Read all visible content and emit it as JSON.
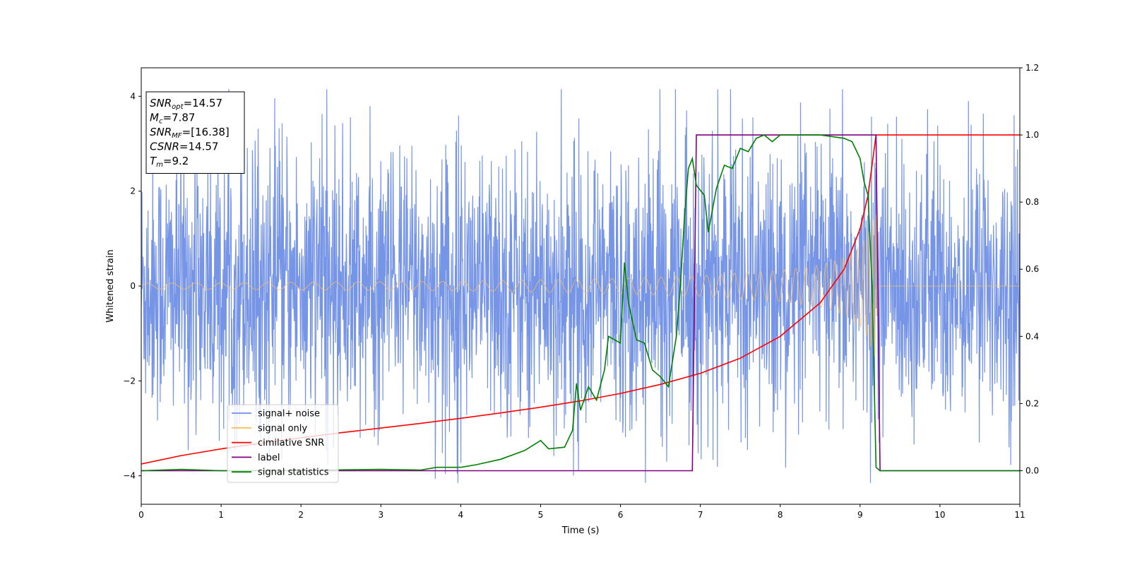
{
  "chart_data": {
    "type": "line",
    "xlabel": "Time (s)",
    "ylabel": "Whitened strain",
    "xlim": [
      0,
      11
    ],
    "ylim": [
      -4.6,
      4.6
    ],
    "y2lim": [
      -0.1,
      1.2
    ],
    "xticks": [
      0,
      1,
      2,
      3,
      4,
      5,
      6,
      7,
      8,
      9,
      10,
      11
    ],
    "yticks": [
      -4,
      -2,
      0,
      2,
      4
    ],
    "yticklabels": [
      "−4",
      "−2",
      "0",
      "2",
      "4"
    ],
    "y2ticks": [
      0.0,
      0.2,
      0.4,
      0.6,
      0.8,
      1.0,
      1.2
    ],
    "y2ticklabels": [
      "0.0",
      "0.2",
      "0.4",
      "0.6",
      "0.8",
      "1.0",
      "1.2"
    ],
    "grid": false,
    "legend_position": "lower-left",
    "annotation": {
      "lines": [
        {
          "base": "SNR",
          "sub": "opt",
          "value": "=14.57"
        },
        {
          "base": "M",
          "sub": "c",
          "value": "=7.87"
        },
        {
          "base": "SNR",
          "sub": "MF",
          "value": "=[16.38]"
        },
        {
          "base": "CSNR",
          "sub": "",
          "value": "=14.57"
        },
        {
          "base": "T",
          "sub": "m",
          "value": "=9.2"
        }
      ]
    },
    "series": [
      {
        "name": "signal+ noise",
        "axis": "left",
        "color": "#6f8fe6",
        "style": "noise",
        "amplitude_envelope": [
          [
            0,
            1.5
          ],
          [
            11,
            1.5
          ]
        ],
        "spike_max": 4.15,
        "spike_min": -4.15
      },
      {
        "name": "signal only",
        "axis": "left",
        "color": "#ffbf5f",
        "style": "chirp",
        "amplitude": [
          [
            0,
            0.06
          ],
          [
            2,
            0.08
          ],
          [
            4,
            0.1
          ],
          [
            6,
            0.16
          ],
          [
            7,
            0.22
          ],
          [
            8,
            0.33
          ],
          [
            8.5,
            0.45
          ],
          [
            8.8,
            0.6
          ],
          [
            9.0,
            0.85
          ],
          [
            9.1,
            1.1
          ],
          [
            9.2,
            1.6
          ],
          [
            9.22,
            0
          ]
        ],
        "end_time": 9.22
      },
      {
        "name": "cimilative SNR",
        "axis": "right",
        "color": "#ff0000",
        "points": [
          [
            0,
            0.02
          ],
          [
            0.5,
            0.045
          ],
          [
            1,
            0.065
          ],
          [
            1.5,
            0.082
          ],
          [
            2,
            0.098
          ],
          [
            2.5,
            0.113
          ],
          [
            3,
            0.127
          ],
          [
            3.5,
            0.141
          ],
          [
            4,
            0.156
          ],
          [
            4.5,
            0.172
          ],
          [
            5,
            0.189
          ],
          [
            5.5,
            0.208
          ],
          [
            6,
            0.23
          ],
          [
            6.5,
            0.257
          ],
          [
            7,
            0.29
          ],
          [
            7.5,
            0.335
          ],
          [
            8,
            0.4
          ],
          [
            8.5,
            0.5
          ],
          [
            8.8,
            0.6
          ],
          [
            9.0,
            0.72
          ],
          [
            9.1,
            0.82
          ],
          [
            9.2,
            1.0
          ],
          [
            11,
            1.0
          ]
        ]
      },
      {
        "name": "label",
        "axis": "right",
        "color": "#800080",
        "points": [
          [
            0,
            0.0
          ],
          [
            6.9,
            0.0
          ],
          [
            6.95,
            1.0
          ],
          [
            9.2,
            1.0
          ],
          [
            9.25,
            0.0
          ],
          [
            11,
            0.0
          ]
        ]
      },
      {
        "name": "signal statistics",
        "axis": "right",
        "color": "#008000",
        "points": [
          [
            0,
            0.0
          ],
          [
            0.5,
            0.004
          ],
          [
            1,
            0.0
          ],
          [
            2,
            0.001
          ],
          [
            3,
            0.004
          ],
          [
            3.5,
            0.002
          ],
          [
            3.7,
            0.01
          ],
          [
            4,
            0.01
          ],
          [
            4.2,
            0.018
          ],
          [
            4.5,
            0.034
          ],
          [
            4.8,
            0.06
          ],
          [
            5.0,
            0.09
          ],
          [
            5.1,
            0.065
          ],
          [
            5.3,
            0.07
          ],
          [
            5.4,
            0.12
          ],
          [
            5.45,
            0.26
          ],
          [
            5.5,
            0.18
          ],
          [
            5.6,
            0.25
          ],
          [
            5.7,
            0.21
          ],
          [
            5.8,
            0.3
          ],
          [
            5.85,
            0.4
          ],
          [
            6.0,
            0.38
          ],
          [
            6.05,
            0.62
          ],
          [
            6.1,
            0.5
          ],
          [
            6.2,
            0.39
          ],
          [
            6.3,
            0.38
          ],
          [
            6.4,
            0.3
          ],
          [
            6.5,
            0.28
          ],
          [
            6.6,
            0.25
          ],
          [
            6.7,
            0.4
          ],
          [
            6.75,
            0.55
          ],
          [
            6.8,
            0.75
          ],
          [
            6.85,
            0.9
          ],
          [
            6.9,
            0.93
          ],
          [
            6.95,
            0.85
          ],
          [
            7.05,
            0.82
          ],
          [
            7.1,
            0.71
          ],
          [
            7.2,
            0.84
          ],
          [
            7.3,
            0.91
          ],
          [
            7.4,
            0.9
          ],
          [
            7.5,
            0.96
          ],
          [
            7.6,
            0.95
          ],
          [
            7.7,
            0.99
          ],
          [
            7.8,
            1.0
          ],
          [
            7.9,
            0.98
          ],
          [
            8.0,
            1.0
          ],
          [
            8.2,
            1.0
          ],
          [
            8.5,
            1.0
          ],
          [
            8.8,
            0.99
          ],
          [
            8.9,
            0.98
          ],
          [
            9.0,
            0.93
          ],
          [
            9.05,
            0.86
          ],
          [
            9.1,
            0.82
          ],
          [
            9.15,
            0.55
          ],
          [
            9.2,
            0.01
          ],
          [
            9.25,
            0.0
          ],
          [
            11,
            0.0
          ]
        ]
      }
    ]
  }
}
